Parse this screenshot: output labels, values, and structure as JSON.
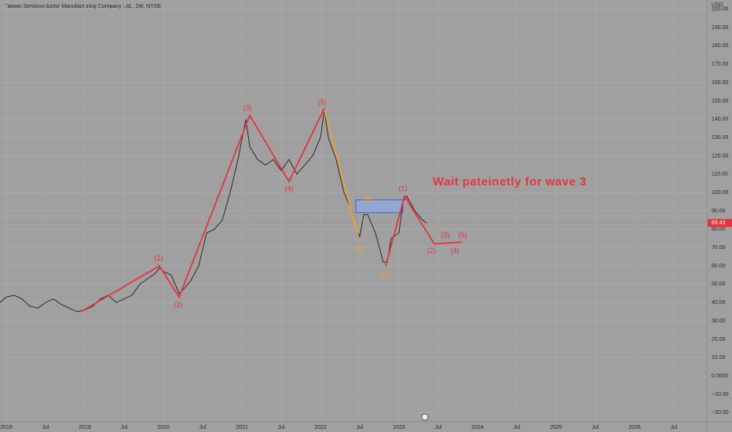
{
  "chart_data": {
    "type": "line",
    "title": "Taiwan Semiconductor Manufacturing Company Ltd., 1W, NYSE",
    "currency": "USD",
    "annotation": "Wait pateinetly for wave 3",
    "current_price": 83.43,
    "x": [
      2017.92,
      2018.0,
      2018.1,
      2018.2,
      2018.3,
      2018.4,
      2018.5,
      2018.6,
      2018.7,
      2018.8,
      2018.9,
      2019.0,
      2019.1,
      2019.2,
      2019.3,
      2019.4,
      2019.5,
      2019.6,
      2019.7,
      2019.8,
      2019.9,
      2019.95,
      2020.0,
      2020.1,
      2020.2,
      2020.25,
      2020.35,
      2020.45,
      2020.55,
      2020.65,
      2020.75,
      2020.85,
      2020.95,
      2021.05,
      2021.1,
      2021.2,
      2021.3,
      2021.4,
      2021.5,
      2021.6,
      2021.7,
      2021.8,
      2021.9,
      2022.0,
      2022.05,
      2022.1,
      2022.2,
      2022.3,
      2022.4,
      2022.45,
      2022.5,
      2022.55,
      2022.6,
      2022.7,
      2022.8,
      2022.85,
      2022.9,
      2023.0,
      2023.05,
      2023.1,
      2023.2,
      2023.3,
      2023.35
    ],
    "series": [
      {
        "color": "#2b2b2b",
        "values": [
          40,
          43,
          44,
          42,
          38,
          37,
          40,
          42,
          39,
          37,
          35,
          36,
          38,
          42,
          44,
          40,
          42,
          44,
          50,
          53,
          56,
          59,
          57,
          55,
          45,
          47,
          52,
          60,
          78,
          80,
          85,
          100,
          118,
          140,
          125,
          118,
          115,
          118,
          112,
          118,
          110,
          115,
          120,
          130,
          145,
          130,
          118,
          100,
          90,
          80,
          76,
          88,
          88,
          78,
          62,
          62,
          75,
          78,
          95,
          98,
          90,
          85,
          83.43
        ]
      }
    ],
    "wave_lines": [
      {
        "color": "#e8333f",
        "x": [
          2018.95,
          2019.95,
          2020.2,
          2021.1,
          2021.6,
          2022.05
        ],
        "y": [
          35,
          60,
          43,
          142,
          106,
          146
        ]
      },
      {
        "color": "#f0a030",
        "x": [
          2022.05,
          2022.3,
          2022.48
        ],
        "y": [
          145,
          105,
          76
        ]
      },
      {
        "color": "#e8333f",
        "x": [
          2022.83,
          2023.07,
          2023.45,
          2023.8
        ],
        "y": [
          60,
          98,
          72,
          73
        ]
      }
    ],
    "wave_labels": [
      {
        "text": "(1)",
        "x": 2019.94,
        "y": 64,
        "color": "#e8333f"
      },
      {
        "text": "(2)",
        "x": 2020.19,
        "y": 38.5,
        "color": "#e8333f"
      },
      {
        "text": "(3)",
        "x": 2021.07,
        "y": 146,
        "color": "#e8333f"
      },
      {
        "text": "(4)",
        "x": 2021.6,
        "y": 101.7,
        "color": "#e8333f"
      },
      {
        "text": "(5)",
        "x": 2022.02,
        "y": 149,
        "color": "#e8333f"
      },
      {
        "text": "(A)",
        "x": 2022.49,
        "y": 69,
        "color": "#f0a030"
      },
      {
        "text": "(B)",
        "x": 2022.61,
        "y": 96,
        "color": "#f0a030"
      },
      {
        "text": "(C)",
        "x": 2022.83,
        "y": 55,
        "color": "#f0a030"
      },
      {
        "text": "(1)",
        "x": 2023.05,
        "y": 102,
        "color": "#e8333f"
      },
      {
        "text": "(2)",
        "x": 2023.41,
        "y": 68,
        "color": "#e8333f"
      },
      {
        "text": "(3)",
        "x": 2023.59,
        "y": 76.7,
        "color": "#e8333f"
      },
      {
        "text": "(4)",
        "x": 2023.71,
        "y": 68,
        "color": "#e8333f"
      },
      {
        "text": "(5)",
        "x": 2023.81,
        "y": 76.7,
        "color": "#e8333f"
      }
    ],
    "zone": {
      "x": [
        2022.45,
        2023.05
      ],
      "y": [
        89,
        96
      ],
      "color": "#8fa8e0"
    },
    "xlim": [
      2017.92,
      2026.92
    ],
    "ylim": [
      -25,
      205
    ],
    "xticks": [
      2018,
      {
        "value": 2018.5,
        "label": "Jul"
      },
      2019,
      {
        "value": 2019.5,
        "label": "Jul"
      },
      2020,
      {
        "value": 2020.5,
        "label": "Jul"
      },
      2021,
      {
        "value": 2021.5,
        "label": "Jul"
      },
      2022,
      {
        "value": 2022.5,
        "label": "Jul"
      },
      2023,
      {
        "value": 2023.5,
        "label": "Jul"
      },
      2024,
      {
        "value": 2024.5,
        "label": "Jul"
      },
      2025,
      {
        "value": 2025.5,
        "label": "Jul"
      },
      2026,
      {
        "value": 2026.5,
        "label": "Jul"
      }
    ],
    "yticks": [
      {
        "value": -20,
        "label": "−20.00"
      },
      {
        "value": -10,
        "label": "−10.00"
      },
      {
        "value": 0,
        "label": "0.0000"
      },
      {
        "value": 10,
        "label": "10.00"
      },
      {
        "value": 20,
        "label": "20.00"
      },
      {
        "value": 30,
        "label": "30.00"
      },
      {
        "value": 40,
        "label": "40.00"
      },
      {
        "value": 50,
        "label": "50.00"
      },
      {
        "value": 60,
        "label": "60.00"
      },
      {
        "value": 70,
        "label": "70.00"
      },
      {
        "value": 80,
        "label": "80.00"
      },
      {
        "value": 90,
        "label": "90.00"
      },
      {
        "value": 100,
        "label": "100.00"
      },
      {
        "value": 110,
        "label": "110.00"
      },
      {
        "value": 120,
        "label": "120.00"
      },
      {
        "value": 130,
        "label": "130.00"
      },
      {
        "value": 140,
        "label": "140.00"
      },
      {
        "value": 150,
        "label": "150.00"
      },
      {
        "value": 160,
        "label": "160.00"
      },
      {
        "value": 170,
        "label": "170.00"
      },
      {
        "value": 180,
        "label": "180.00"
      },
      {
        "value": 190,
        "label": "190.00"
      },
      {
        "value": 200,
        "label": "200.00"
      }
    ],
    "grid": true
  }
}
